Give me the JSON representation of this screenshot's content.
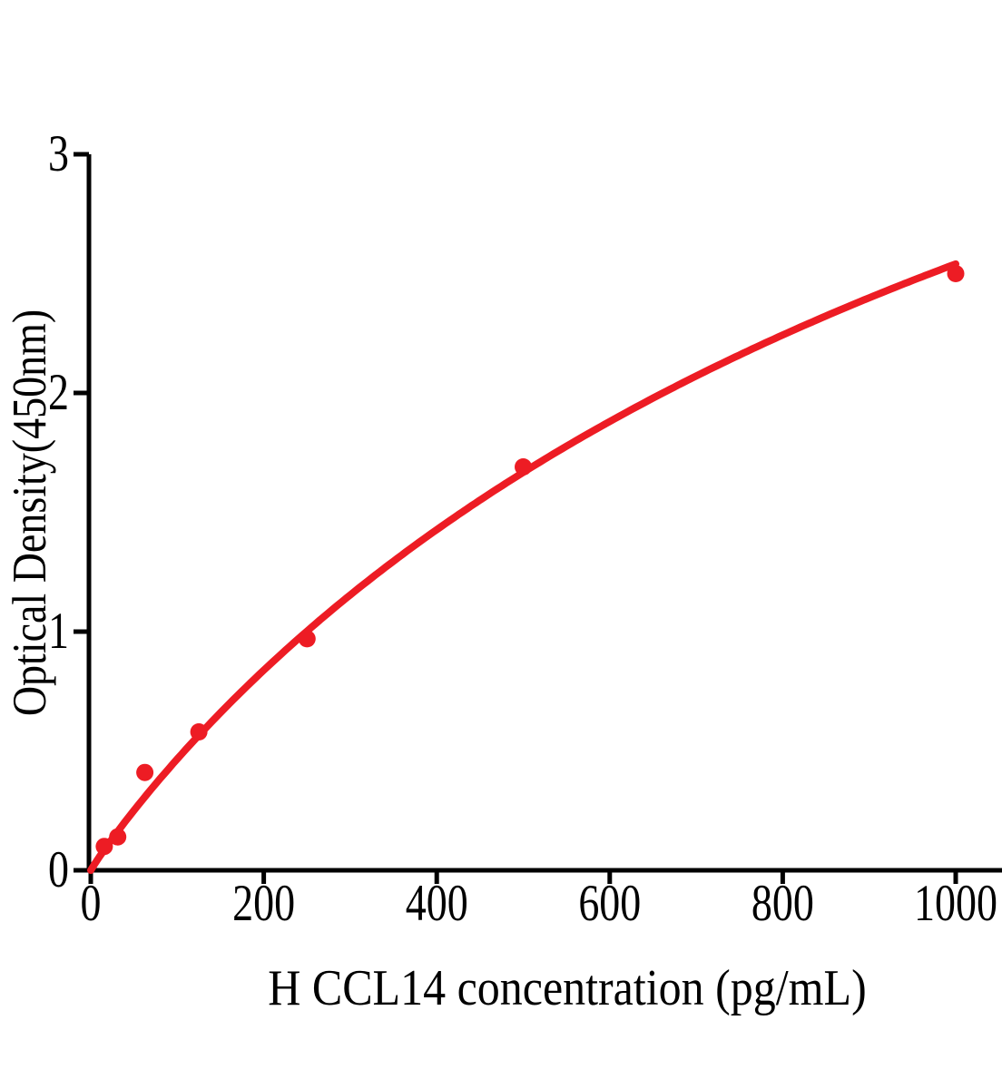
{
  "chart_data": {
    "type": "scatter",
    "title": "",
    "xlabel": "H CCL14 concentration (pg/mL)",
    "ylabel": "Optical Density(450nm)",
    "x_ticks": [
      0,
      200,
      400,
      600,
      800,
      1000
    ],
    "y_ticks": [
      0,
      1,
      2,
      3
    ],
    "xlim": [
      0,
      1055
    ],
    "ylim": [
      0,
      3
    ],
    "grid": false,
    "legend": false,
    "marker_color": "#ed1c24",
    "line_color": "#ed1c24",
    "axis_color": "#000000",
    "points": [
      {
        "x": 15.6,
        "y": 0.1
      },
      {
        "x": 31.2,
        "y": 0.14
      },
      {
        "x": 62.5,
        "y": 0.41
      },
      {
        "x": 125,
        "y": 0.58
      },
      {
        "x": 250,
        "y": 0.97
      },
      {
        "x": 500,
        "y": 1.69
      },
      {
        "x": 1000,
        "y": 2.5
      }
    ],
    "fit_curve": {
      "model": "4PL",
      "a": 0,
      "d": 5.8,
      "c": 1300,
      "b": 0.95,
      "x_min": 0,
      "x_max": 1000
    }
  }
}
